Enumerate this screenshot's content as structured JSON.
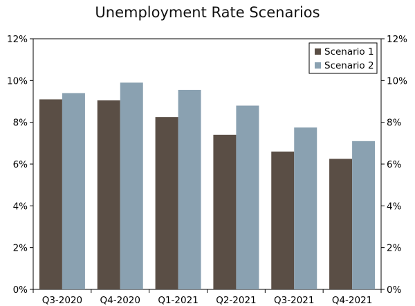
{
  "chart_data": {
    "type": "bar",
    "title": "Unemployment Rate Scenarios",
    "categories": [
      "Q3-2020",
      "Q4-2020",
      "Q1-2021",
      "Q2-2021",
      "Q3-2021",
      "Q4-2021"
    ],
    "series": [
      {
        "name": "Scenario 1",
        "color": "#5a4e45",
        "values": [
          9.1,
          9.05,
          8.25,
          7.4,
          6.6,
          6.25
        ]
      },
      {
        "name": "Scenario 2",
        "color": "#8aa1b1",
        "values": [
          9.4,
          9.9,
          9.55,
          8.8,
          7.75,
          7.1
        ]
      }
    ],
    "ylim": [
      0,
      12
    ],
    "yticks": [
      "0%",
      "2%",
      "4%",
      "6%",
      "8%",
      "10%",
      "12%"
    ],
    "ytick_values": [
      0,
      2,
      4,
      6,
      8,
      10,
      12
    ],
    "secondary_yaxis": true,
    "legend_position": "top-right",
    "xlabel": "",
    "ylabel": ""
  }
}
